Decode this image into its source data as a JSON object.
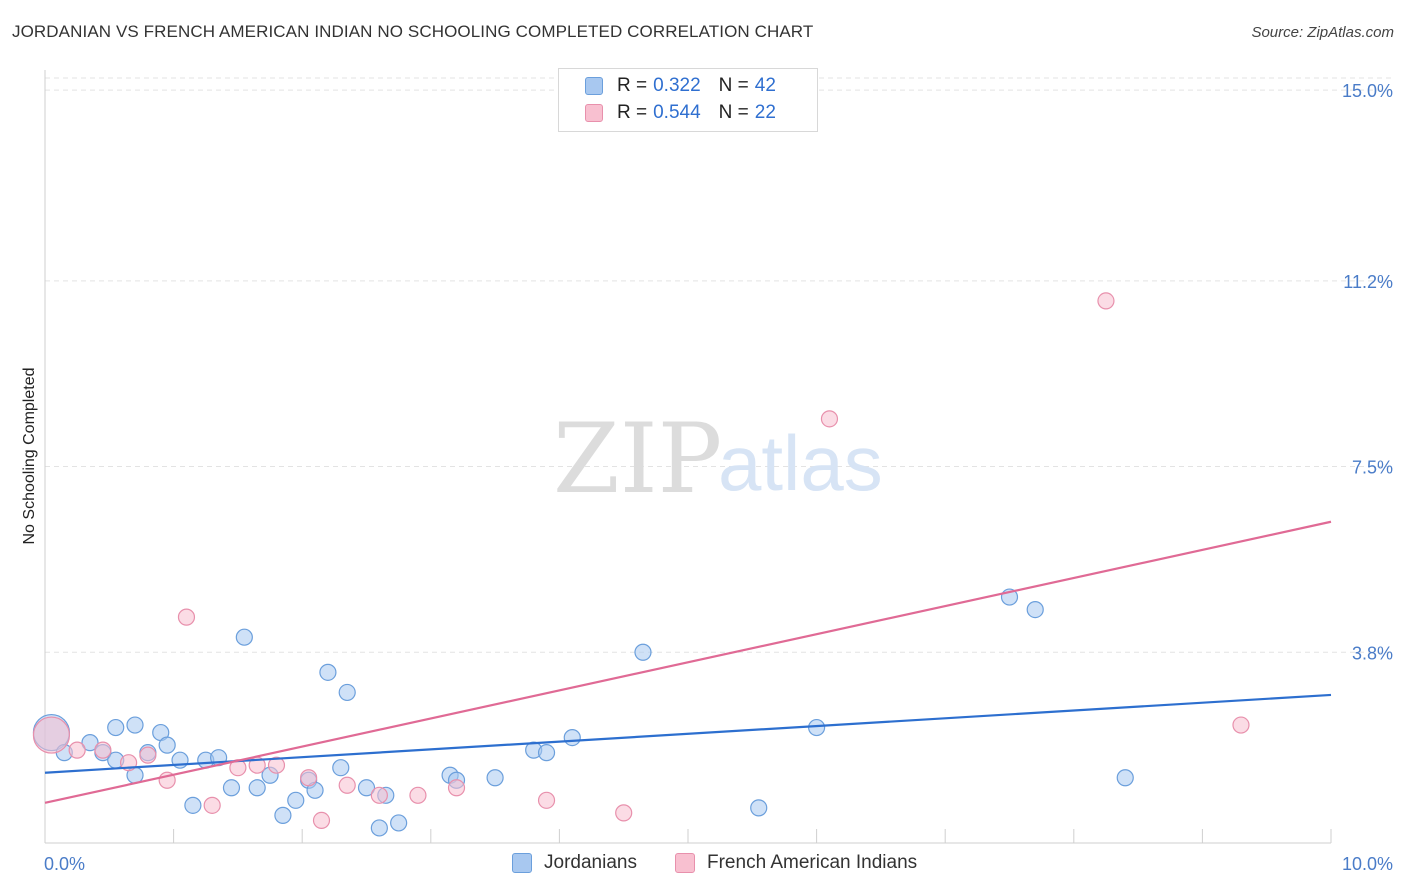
{
  "header": {
    "title": "JORDANIAN VS FRENCH AMERICAN INDIAN NO SCHOOLING COMPLETED CORRELATION CHART",
    "source": "Source: ZipAtlas.com"
  },
  "watermark": {
    "zip": "ZIP",
    "atlas": "atlas"
  },
  "legend": {
    "r_label": "R =",
    "n_label": "N =",
    "rows": [
      {
        "r": "0.322",
        "n": "42",
        "color": "#a8c8f0",
        "border": "#6b9fdc"
      },
      {
        "r": "0.544",
        "n": "22",
        "color": "#f8c0d0",
        "border": "#e890ac"
      }
    ]
  },
  "bottom_legend": {
    "jordanians": "Jordanians",
    "french": "French American Indians"
  },
  "colors": {
    "blue_fill": "rgba(168,200,240,0.55)",
    "blue_stroke": "#6b9fdc",
    "blue_line": "#2d6fcf",
    "pink_fill": "rgba(248,192,208,0.55)",
    "pink_stroke": "#e890ac",
    "pink_line": "#e06a95",
    "tick_text": "#4a7cc8",
    "grid": "#e3e3e3"
  },
  "chart_data": {
    "type": "scatter",
    "title": "JORDANIAN VS FRENCH AMERICAN INDIAN NO SCHOOLING COMPLETED CORRELATION CHART",
    "xlabel": "",
    "ylabel": "No Schooling Completed",
    "xlim": [
      0,
      10
    ],
    "ylim": [
      0,
      15.4
    ],
    "x_tick_labels": [
      "0.0%",
      "10.0%"
    ],
    "y_ticks": [
      3.8,
      7.5,
      11.2,
      15.0
    ],
    "y_tick_labels": [
      "3.8%",
      "7.5%",
      "11.2%",
      "15.0%"
    ],
    "grid": true,
    "series": [
      {
        "name": "Jordanians",
        "r": 0.322,
        "n": 42,
        "trend": [
          [
            0,
            1.4
          ],
          [
            10,
            2.95
          ]
        ],
        "points": [
          [
            0.05,
            2.2,
            "large"
          ],
          [
            0.15,
            1.8
          ],
          [
            0.35,
            2.0
          ],
          [
            0.45,
            1.8
          ],
          [
            0.55,
            1.65
          ],
          [
            0.55,
            2.3
          ],
          [
            0.7,
            2.35
          ],
          [
            0.7,
            1.35
          ],
          [
            0.8,
            1.8
          ],
          [
            0.9,
            2.2
          ],
          [
            0.95,
            1.95
          ],
          [
            1.05,
            1.65
          ],
          [
            1.15,
            0.75
          ],
          [
            1.25,
            1.65
          ],
          [
            1.35,
            1.7
          ],
          [
            1.45,
            1.1
          ],
          [
            1.55,
            4.1
          ],
          [
            1.65,
            1.1
          ],
          [
            1.75,
            1.35
          ],
          [
            1.85,
            0.55
          ],
          [
            1.95,
            0.85
          ],
          [
            2.05,
            1.25
          ],
          [
            2.1,
            1.05
          ],
          [
            2.2,
            3.4
          ],
          [
            2.3,
            1.5
          ],
          [
            2.35,
            3.0
          ],
          [
            2.5,
            1.1
          ],
          [
            2.6,
            0.3
          ],
          [
            2.65,
            0.95
          ],
          [
            2.75,
            0.4
          ],
          [
            3.15,
            1.35
          ],
          [
            3.2,
            1.25
          ],
          [
            3.5,
            1.3
          ],
          [
            3.8,
            1.85
          ],
          [
            3.9,
            1.8
          ],
          [
            4.1,
            2.1
          ],
          [
            4.65,
            3.8
          ],
          [
            5.55,
            0.7
          ],
          [
            6.0,
            2.3
          ],
          [
            7.5,
            4.9
          ],
          [
            7.7,
            4.65
          ],
          [
            8.4,
            1.3
          ]
        ]
      },
      {
        "name": "French American Indians",
        "r": 0.544,
        "n": 22,
        "trend": [
          [
            0,
            0.8
          ],
          [
            10,
            6.4
          ]
        ],
        "points": [
          [
            0.05,
            2.15,
            "large"
          ],
          [
            0.25,
            1.85
          ],
          [
            0.45,
            1.85
          ],
          [
            0.65,
            1.6
          ],
          [
            0.8,
            1.75
          ],
          [
            0.95,
            1.25
          ],
          [
            1.1,
            4.5
          ],
          [
            1.3,
            0.75
          ],
          [
            1.5,
            1.5
          ],
          [
            1.65,
            1.55
          ],
          [
            1.8,
            1.55
          ],
          [
            2.05,
            1.3
          ],
          [
            2.15,
            0.45
          ],
          [
            2.35,
            1.15
          ],
          [
            2.6,
            0.95
          ],
          [
            2.9,
            0.95
          ],
          [
            3.2,
            1.1
          ],
          [
            3.9,
            0.85
          ],
          [
            4.5,
            0.6
          ],
          [
            6.1,
            8.45
          ],
          [
            8.25,
            10.8
          ],
          [
            9.3,
            2.35
          ]
        ]
      }
    ]
  }
}
